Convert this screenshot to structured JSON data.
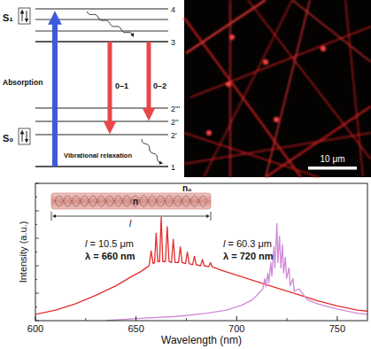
{
  "diagram": {
    "states": [
      "S₁",
      "S₀"
    ],
    "levels": [
      "4",
      "3",
      "2'''",
      "2''",
      "2'",
      "1"
    ],
    "absorption": "Absorption",
    "relaxation": "Vibrational relaxation",
    "transitions": [
      "0–1",
      "0–2"
    ]
  },
  "micrograph": {
    "scale_bar": "10 μm"
  },
  "chart_data": {
    "type": "line",
    "x_label": "Wavelength (nm)",
    "y_label": "Intensity (a.u.)",
    "xlim": [
      600,
      765
    ],
    "xticks": [
      600,
      650,
      700,
      750
    ],
    "ylim": [
      0,
      1.3
    ],
    "tick_labels": "x",
    "grid": false,
    "inset": {
      "n0": "n₀",
      "n": "n",
      "l": "l"
    },
    "annotations": [
      [
        "l = 10.5 μm",
        "λ = 660 nm"
      ],
      [
        "l = 60.3 μm",
        "λ = 720 nm"
      ]
    ],
    "series": [
      {
        "color": "#e62e2e",
        "x": [
          600,
          610,
          620,
          630,
          640,
          648,
          652,
          655,
          656.5,
          657.5,
          658.5,
          659.2,
          660,
          660.8,
          661.7,
          662.5,
          663.3,
          664.6,
          665.5,
          666.4,
          667.6,
          668.5,
          669.4,
          671.1,
          672,
          672.9,
          674.6,
          675.5,
          676.4,
          678.1,
          679,
          679.9,
          682.1,
          683,
          683.9,
          686.1,
          687,
          687.9,
          692,
          700,
          710,
          720,
          730,
          740,
          750,
          760,
          765
        ],
        "values": [
          0.06,
          0.1,
          0.16,
          0.24,
          0.33,
          0.42,
          0.46,
          0.5,
          0.52,
          0.66,
          0.54,
          0.55,
          0.83,
          0.56,
          0.56,
          0.98,
          0.56,
          0.56,
          0.89,
          0.56,
          0.55,
          0.77,
          0.55,
          0.55,
          0.7,
          0.55,
          0.54,
          0.65,
          0.54,
          0.53,
          0.61,
          0.53,
          0.52,
          0.58,
          0.52,
          0.51,
          0.55,
          0.51,
          0.48,
          0.43,
          0.37,
          0.31,
          0.25,
          0.19,
          0.14,
          0.1,
          0.09
        ]
      },
      {
        "color": "#d28ad6",
        "x": [
          635,
          650,
          670,
          685,
          695,
          703,
          708,
          711,
          713,
          714,
          714.5,
          715.5,
          716,
          717,
          717.5,
          718.5,
          719,
          720,
          720.5,
          721.3,
          722,
          722.8,
          723.3,
          724.2,
          724.8,
          726,
          726.6,
          728,
          728.6,
          731,
          735,
          740,
          750,
          760,
          765
        ],
        "values": [
          0.0,
          0.02,
          0.04,
          0.07,
          0.1,
          0.15,
          0.2,
          0.26,
          0.3,
          0.4,
          0.32,
          0.45,
          0.36,
          0.55,
          0.42,
          0.7,
          0.5,
          0.92,
          0.55,
          0.8,
          0.5,
          0.72,
          0.45,
          0.6,
          0.4,
          0.5,
          0.33,
          0.4,
          0.28,
          0.3,
          0.2,
          0.16,
          0.11,
          0.07,
          0.06
        ]
      }
    ]
  }
}
